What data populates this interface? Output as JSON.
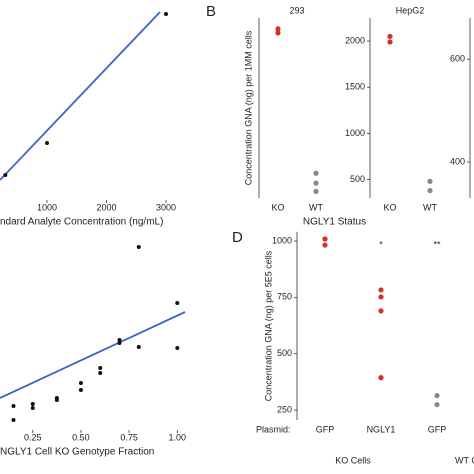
{
  "chart_data": [
    {
      "type": "scatter",
      "x_label": "ndard Analyte Concentration (ng/mL)",
      "x": [
        300,
        1000,
        3000
      ],
      "y": [
        0.25,
        0.57,
        1.86
      ],
      "fit": {
        "x": [
          210,
          2899
        ],
        "y": [
          0.2,
          1.88
        ],
        "color": "#3a66c4"
      },
      "xlim": [
        210,
        3235
      ],
      "xticks": [
        1000,
        2000,
        3000
      ],
      "ylim": [
        0,
        2
      ],
      "color": "#111111"
    },
    {
      "type": "facets",
      "panel_label": "B",
      "y_label": "Concentration GNA (ng) per 1MM cells",
      "x_label": "NGLY1 Status",
      "facets": [
        {
          "type": "strip",
          "title": "293",
          "categories": [
            "KO",
            "WT"
          ],
          "groups": [
            [
              607,
              595
            ],
            [
              170,
              140,
              115
            ]
          ],
          "colors": [
            "#d7301f",
            "#7f8c8d"
          ],
          "ylim": [
            95,
            640
          ]
        },
        {
          "type": "strip",
          "title": "HepG2",
          "categories": [
            "KO",
            "WT"
          ],
          "groups": [
            [
              2050,
              1990
            ],
            [
              480,
              380
            ]
          ],
          "colors": [
            "#d7301f",
            "#7f8c8d"
          ],
          "ylim": [
            300,
            2250
          ],
          "yticks": [
            500,
            1000,
            1500,
            2000
          ]
        },
        {
          "type": "strip",
          "ylim": [
            330,
            680
          ],
          "yticks": [
            400,
            600
          ]
        }
      ]
    },
    {
      "type": "scatter",
      "x_label": "NGLY1 Cell KO Genotype Fraction",
      "x": [
        1.0,
        1.0,
        0.8,
        0.8,
        0.7,
        0.7,
        0.6,
        0.6,
        0.5,
        0.5,
        0.375,
        0.375,
        0.25,
        0.25,
        0.15,
        0.15
      ],
      "y": [
        0.635,
        0.41,
        0.915,
        0.415,
        0.45,
        0.435,
        0.31,
        0.285,
        0.235,
        0.2,
        0.16,
        0.15,
        0.13,
        0.11,
        0.12,
        0.05
      ],
      "fit": {
        "x": [
          0.08,
          1.04
        ],
        "y": [
          0.16,
          0.59
        ],
        "color": "#3a66c4"
      },
      "xlim": [
        0.08,
        1.04
      ],
      "xticks": [
        {
          "value": 0.25,
          "label": "0.25"
        },
        {
          "value": 0.5,
          "label": "0.50"
        },
        {
          "value": 0.75,
          "label": "0.75"
        },
        {
          "value": 1,
          "label": "1.00"
        }
      ],
      "ylim": [
        0,
        1
      ],
      "color": "#111111"
    },
    {
      "type": "strip",
      "panel_label": "D",
      "y_label": "Concentration GNA (ng) per 5E5 cells",
      "row_label": "Plasmid:",
      "categories": [
        "GFP",
        "NGLY1",
        "GFP"
      ],
      "groups": [
        [
          1009,
          982
        ],
        [
          783,
          752,
          690,
          394
        ],
        [
          314,
          274
        ]
      ],
      "colors": [
        "#d7301f",
        "#d7301f",
        "#7f8c8d"
      ],
      "annotations": [
        null,
        "*",
        "**"
      ],
      "cell_groups": [
        "KO Cells",
        "WT Ce"
      ],
      "ylim": [
        206,
        1040
      ],
      "yticks": [
        250,
        500,
        750,
        1000
      ]
    }
  ]
}
